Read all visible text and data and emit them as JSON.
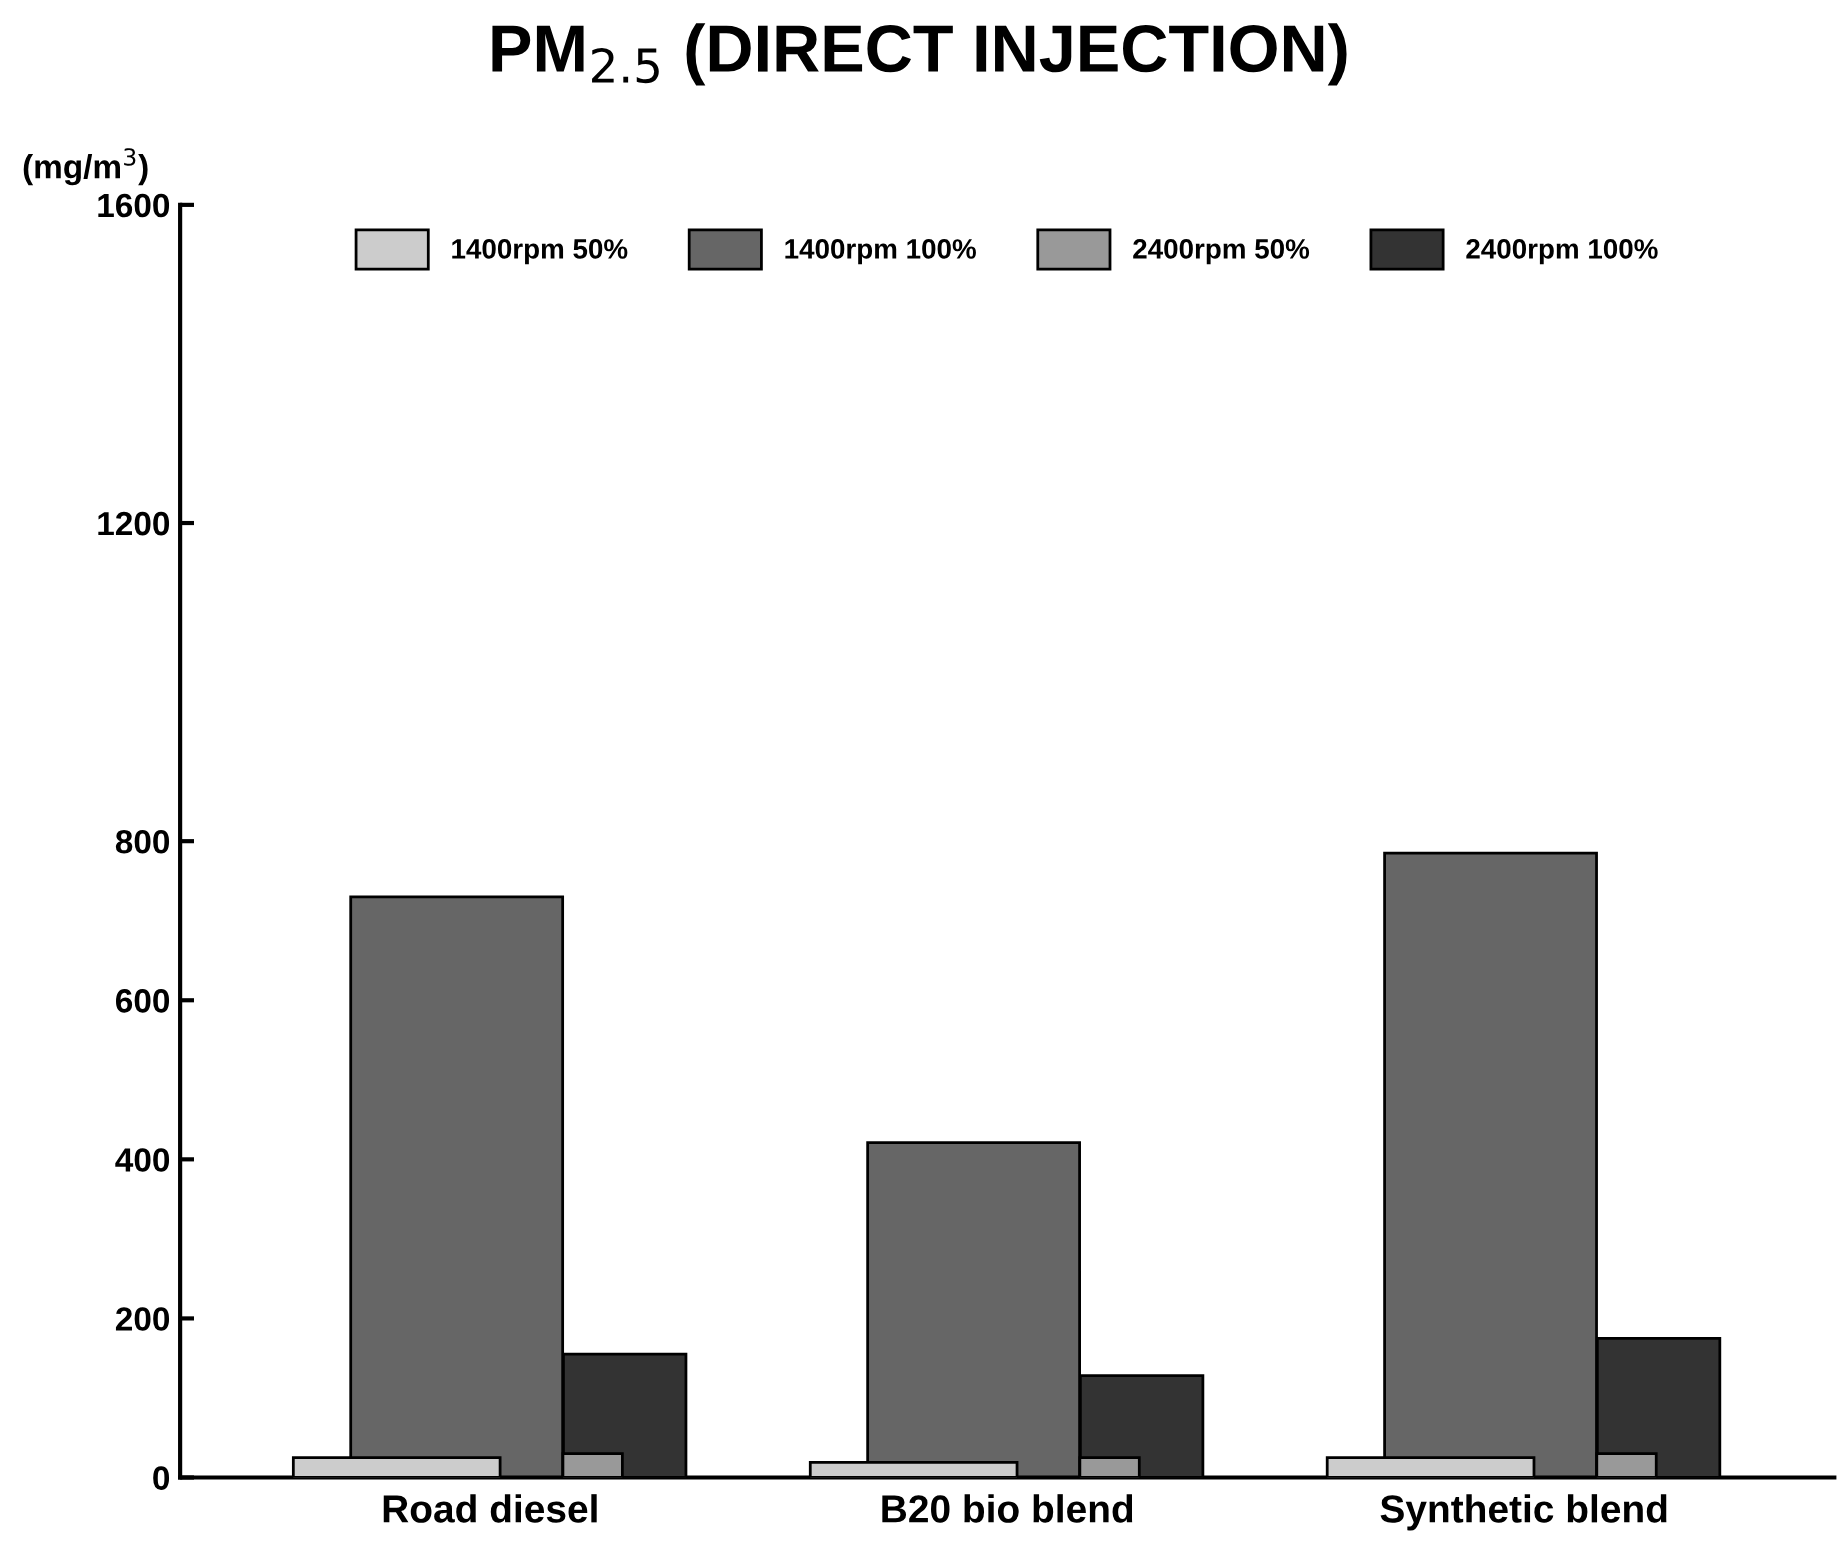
{
  "chart_data": {
    "type": "bar",
    "title": "PM$_{2.5}$ (DIRECT INJECTION)",
    "ylabel": "(mg/m$^{3}$)",
    "categories": [
      "Road diesel",
      "B20 bio blend",
      "Synthetic blend"
    ],
    "series": [
      {
        "name": "1400rpm 50%",
        "color": "#cccccc",
        "values": [
          25,
          19,
          25
        ]
      },
      {
        "name": "1400rpm 100%",
        "color": "#666666",
        "values": [
          730,
          421,
          785
        ]
      },
      {
        "name": "2400rpm 50%",
        "color": "#999999",
        "values": [
          30,
          25,
          30
        ]
      },
      {
        "name": "2400rpm 100%",
        "color": "#333333",
        "values": [
          155,
          128,
          175
        ]
      }
    ],
    "ylim": [
      0,
      1600
    ],
    "yticks": [
      0,
      200,
      400,
      600,
      800,
      1200,
      1600
    ],
    "grid": false,
    "legend": "top"
  }
}
